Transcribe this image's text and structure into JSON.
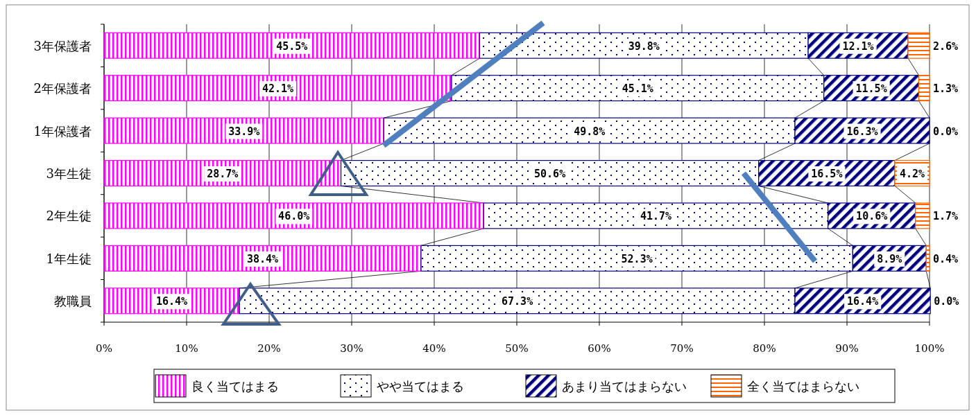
{
  "chart_data": {
    "type": "bar",
    "orientation": "horizontal",
    "stacked": true,
    "categories": [
      "3年保護者",
      "2年保護者",
      "1年保護者",
      "3年生徒",
      "2年生徒",
      "1年生徒",
      "教職員"
    ],
    "series": [
      {
        "name": "良く当てはまる",
        "color": "#ff00ff",
        "values": [
          45.5,
          42.1,
          33.9,
          28.7,
          46.0,
          38.4,
          16.4
        ],
        "value_labels": [
          "45.5%",
          "42.1%",
          "33.9%",
          "28.7%",
          "46.0%",
          "38.4%",
          "16.4%"
        ]
      },
      {
        "name": "やや当てはまる",
        "color": "#000080",
        "values": [
          39.8,
          45.1,
          49.8,
          50.6,
          41.7,
          52.3,
          67.3
        ],
        "value_labels": [
          "39.8%",
          "45.1%",
          "49.8%",
          "50.6%",
          "41.7%",
          "52.3%",
          "67.3%"
        ]
      },
      {
        "name": "あまり当てはまらない",
        "color": "#000080",
        "values": [
          12.1,
          11.5,
          16.3,
          16.5,
          10.6,
          8.9,
          16.4
        ],
        "value_labels": [
          "12.1%",
          "11.5%",
          "16.3%",
          "16.5%",
          "10.6%",
          "8.9%",
          "16.4%"
        ]
      },
      {
        "name": "全く当てはまらない",
        "color": "#ff6600",
        "values": [
          2.6,
          1.3,
          0.0,
          4.2,
          1.7,
          0.4,
          0.0
        ],
        "value_labels": [
          "2.6%",
          "1.3%",
          "0.0%",
          "4.2%",
          "1.7%",
          "0.4%",
          "0.0%"
        ]
      }
    ],
    "xlim": [
      0,
      100
    ],
    "xticks": [
      {
        "value": 0,
        "label": "0%"
      },
      {
        "value": 10,
        "label": "10%"
      },
      {
        "value": 20,
        "label": "20%"
      },
      {
        "value": 30,
        "label": "30%"
      },
      {
        "value": 40,
        "label": "40%"
      },
      {
        "value": 50,
        "label": "50%"
      },
      {
        "value": 60,
        "label": "60%"
      },
      {
        "value": 70,
        "label": "70%"
      },
      {
        "value": 80,
        "label": "80%"
      },
      {
        "value": 90,
        "label": "90%"
      },
      {
        "value": 100,
        "label": "100%"
      }
    ],
    "grid": "x",
    "legend": "bottom"
  }
}
